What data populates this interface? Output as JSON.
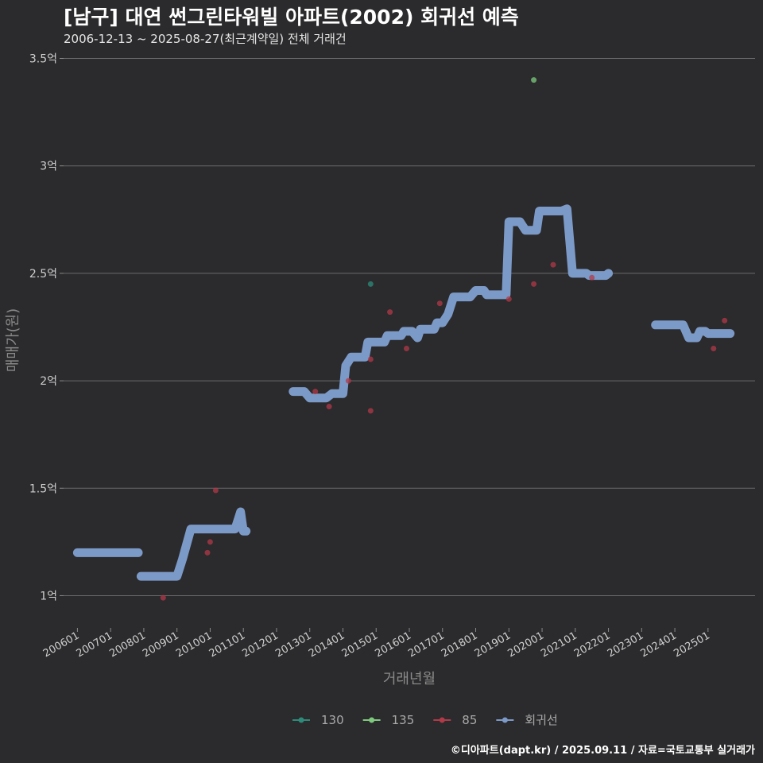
{
  "chart_data": {
    "type": "scatter",
    "title": "[남구] 대연 썬그린타워빌 아파트(2002) 회귀선 예측",
    "subtitle": "2006-12-13 ~ 2025-08-27(최근계약일) 전체 거래건",
    "xlabel": "거래년월",
    "ylabel": "매매가(원)",
    "caption": "©디아파트(dapt.kr) / 2025.09.11 / 자료=국토교통부 실거래가",
    "xlim": [
      "2005-08",
      "2026-06"
    ],
    "ylim": [
      0.85,
      3.55
    ],
    "grid": true,
    "legend_position": "bottom",
    "x_ticks": [
      "200601",
      "200701",
      "200801",
      "200901",
      "201001",
      "201101",
      "201201",
      "201301",
      "201401",
      "201501",
      "201601",
      "201701",
      "201801",
      "201901",
      "202001",
      "202101",
      "202201",
      "202301",
      "202401",
      "202501"
    ],
    "y_ticks": [
      {
        "value": 1.0,
        "label": "1억"
      },
      {
        "value": 1.5,
        "label": "1.5억"
      },
      {
        "value": 2.0,
        "label": "2억"
      },
      {
        "value": 2.5,
        "label": "2.5억"
      },
      {
        "value": 3.0,
        "label": "3억"
      },
      {
        "value": 3.5,
        "label": "3.5억"
      }
    ],
    "series": [
      {
        "name": "130",
        "color": "#2e8b7a",
        "kind": "points",
        "points": [
          [
            "2014-11",
            2.45
          ]
        ]
      },
      {
        "name": "135",
        "color": "#7fc97f",
        "kind": "points",
        "points": [
          [
            "2019-10",
            3.4
          ]
        ]
      },
      {
        "name": "85",
        "color": "#b03a48",
        "kind": "points",
        "points": [
          [
            "2008-08",
            0.99
          ],
          [
            "2009-12",
            1.2
          ],
          [
            "2010-01",
            1.25
          ],
          [
            "2010-03",
            1.49
          ],
          [
            "2013-03",
            1.95
          ],
          [
            "2013-08",
            1.88
          ],
          [
            "2014-03",
            2.0
          ],
          [
            "2014-11",
            2.1
          ],
          [
            "2014-11",
            1.86
          ],
          [
            "2015-06",
            2.32
          ],
          [
            "2015-12",
            2.15
          ],
          [
            "2016-12",
            2.36
          ],
          [
            "2019-01",
            2.38
          ],
          [
            "2019-10",
            2.45
          ],
          [
            "2020-05",
            2.54
          ],
          [
            "2021-07",
            2.48
          ],
          [
            "2025-03",
            2.15
          ],
          [
            "2025-07",
            2.28
          ]
        ]
      },
      {
        "name": "회귀선",
        "color": "#7c9ac7",
        "kind": "line",
        "segments": [
          [
            [
              "2006-01",
              1.2
            ],
            [
              "2007-11",
              1.2
            ]
          ],
          [
            [
              "2007-12",
              1.09
            ],
            [
              "2009-01",
              1.09
            ],
            [
              "2009-03",
              1.17
            ],
            [
              "2009-06",
              1.31
            ],
            [
              "2010-10",
              1.31
            ],
            [
              "2010-12",
              1.39
            ],
            [
              "2011-01",
              1.3
            ],
            [
              "2011-02",
              1.3
            ]
          ],
          [
            [
              "2012-07",
              1.95
            ],
            [
              "2012-11",
              1.95
            ],
            [
              "2013-01",
              1.92
            ],
            [
              "2013-07",
              1.92
            ],
            [
              "2013-09",
              1.94
            ],
            [
              "2014-01",
              1.94
            ],
            [
              "2014-02",
              2.07
            ],
            [
              "2014-04",
              2.11
            ],
            [
              "2014-09",
              2.11
            ],
            [
              "2014-10",
              2.18
            ],
            [
              "2015-04",
              2.18
            ],
            [
              "2015-05",
              2.21
            ],
            [
              "2015-10",
              2.21
            ],
            [
              "2015-11",
              2.23
            ],
            [
              "2016-02",
              2.23
            ],
            [
              "2016-04",
              2.2
            ],
            [
              "2016-05",
              2.24
            ],
            [
              "2016-10",
              2.24
            ],
            [
              "2016-11",
              2.27
            ],
            [
              "2017-01",
              2.27
            ],
            [
              "2017-03",
              2.31
            ],
            [
              "2017-05",
              2.39
            ],
            [
              "2017-11",
              2.39
            ],
            [
              "2018-01",
              2.42
            ],
            [
              "2018-04",
              2.42
            ],
            [
              "2018-05",
              2.4
            ],
            [
              "2018-12",
              2.4
            ],
            [
              "2019-01",
              2.74
            ],
            [
              "2019-05",
              2.74
            ],
            [
              "2019-07",
              2.7
            ],
            [
              "2019-11",
              2.7
            ],
            [
              "2019-12",
              2.79
            ],
            [
              "2020-08",
              2.79
            ],
            [
              "2020-10",
              2.8
            ],
            [
              "2020-12",
              2.5
            ],
            [
              "2021-05",
              2.5
            ],
            [
              "2021-06",
              2.49
            ],
            [
              "2021-12",
              2.49
            ],
            [
              "2022-01",
              2.5
            ]
          ],
          [
            [
              "2023-06",
              2.26
            ],
            [
              "2024-04",
              2.26
            ],
            [
              "2024-06",
              2.2
            ],
            [
              "2024-09",
              2.2
            ],
            [
              "2024-10",
              2.23
            ],
            [
              "2024-12",
              2.23
            ],
            [
              "2025-01",
              2.22
            ],
            [
              "2025-09",
              2.22
            ]
          ]
        ]
      }
    ]
  }
}
